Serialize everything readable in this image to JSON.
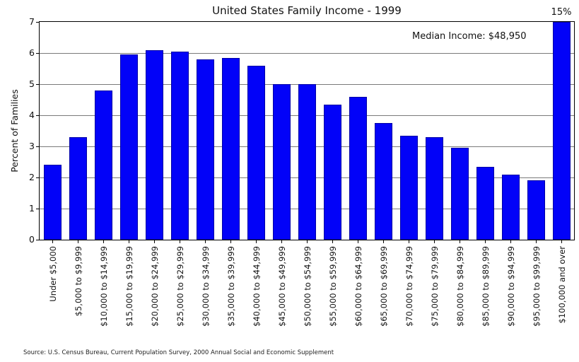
{
  "chart_data": {
    "type": "bar",
    "title": "United States Family Income - 1999",
    "ylabel": "Percent of Families",
    "xlabel": "",
    "ylim": [
      0,
      7
    ],
    "yticks": [
      0,
      1,
      2,
      3,
      4,
      5,
      6,
      7
    ],
    "grid": true,
    "legend": false,
    "bar_color": "#0202f8",
    "bar_edge_color": "#0000a6",
    "grid_color": "#7a7a7a",
    "categories": [
      "Under $5,000",
      "$5,000 to $9,999",
      "$10,000 to $14,999",
      "$15,000 to $19,999",
      "$20,000 to $24,999",
      "$25,000 to $29,999",
      "$30,000 to $34,999",
      "$35,000 to $39,999",
      "$40,000 to $44,999",
      "$45,000 to $49,999",
      "$50,000 to $54,999",
      "$55,000 to $59,999",
      "$60,000 to $64,999",
      "$65,000 to $69,999",
      "$70,000 to $74,999",
      "$75,000 to $79,999",
      "$80,000 to $84,999",
      "$85,000 to $89,999",
      "$90,000 to $94,999",
      "$95,000 to $99,999",
      "$100,000 and over"
    ],
    "values": [
      2.4,
      3.3,
      4.8,
      5.95,
      6.1,
      6.05,
      5.8,
      5.85,
      5.6,
      5.0,
      5.0,
      4.35,
      4.6,
      3.75,
      3.35,
      3.3,
      2.95,
      2.35,
      2.1,
      1.9,
      15
    ],
    "clipped_bar": {
      "index": 20,
      "true_value_label": "15%",
      "display_max": 7
    },
    "annotation": "Median Income: $48,950",
    "source": "Source: U.S. Census Bureau, Current Population Survey, 2000 Annual Social and Economic Supplement"
  }
}
